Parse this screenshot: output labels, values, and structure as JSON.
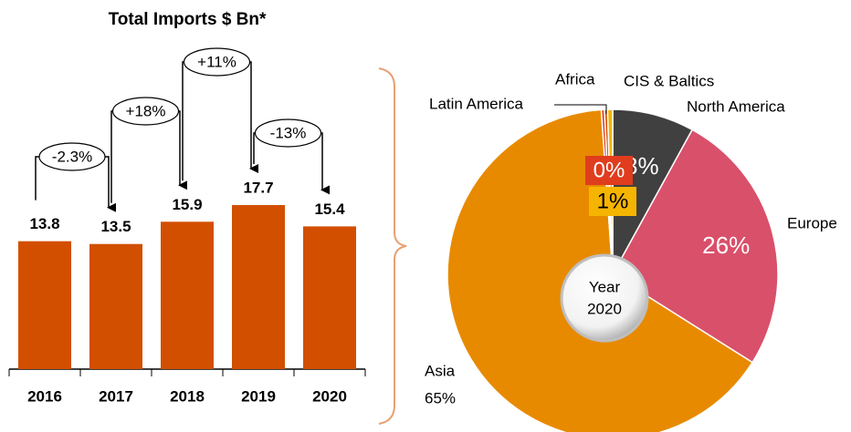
{
  "chart_data": [
    {
      "type": "bar",
      "title": "Total Imports $ Bn*",
      "categories": [
        "2016",
        "2017",
        "2018",
        "2019",
        "2020"
      ],
      "values": [
        13.8,
        13.5,
        15.9,
        17.7,
        15.4
      ],
      "color": "#d24f00",
      "annotations": [
        "-2.3%",
        "+18%",
        "+11%",
        "-13%"
      ]
    },
    {
      "type": "donut",
      "categories": [
        "North America",
        "Europe",
        "Asia",
        "Latin America",
        "Africa",
        "CIS & Baltics"
      ],
      "values": [
        8,
        26,
        65,
        0.3,
        0.3,
        0.5
      ],
      "value_labels": [
        "8%",
        "26%",
        "65%",
        "0%",
        null,
        "1%"
      ],
      "colors": [
        "#404040",
        "#d9506a",
        "#e88a00",
        "#e03c1e",
        "#d24f00",
        "#f5b400"
      ],
      "center_label": [
        "Year",
        "2020"
      ]
    }
  ]
}
